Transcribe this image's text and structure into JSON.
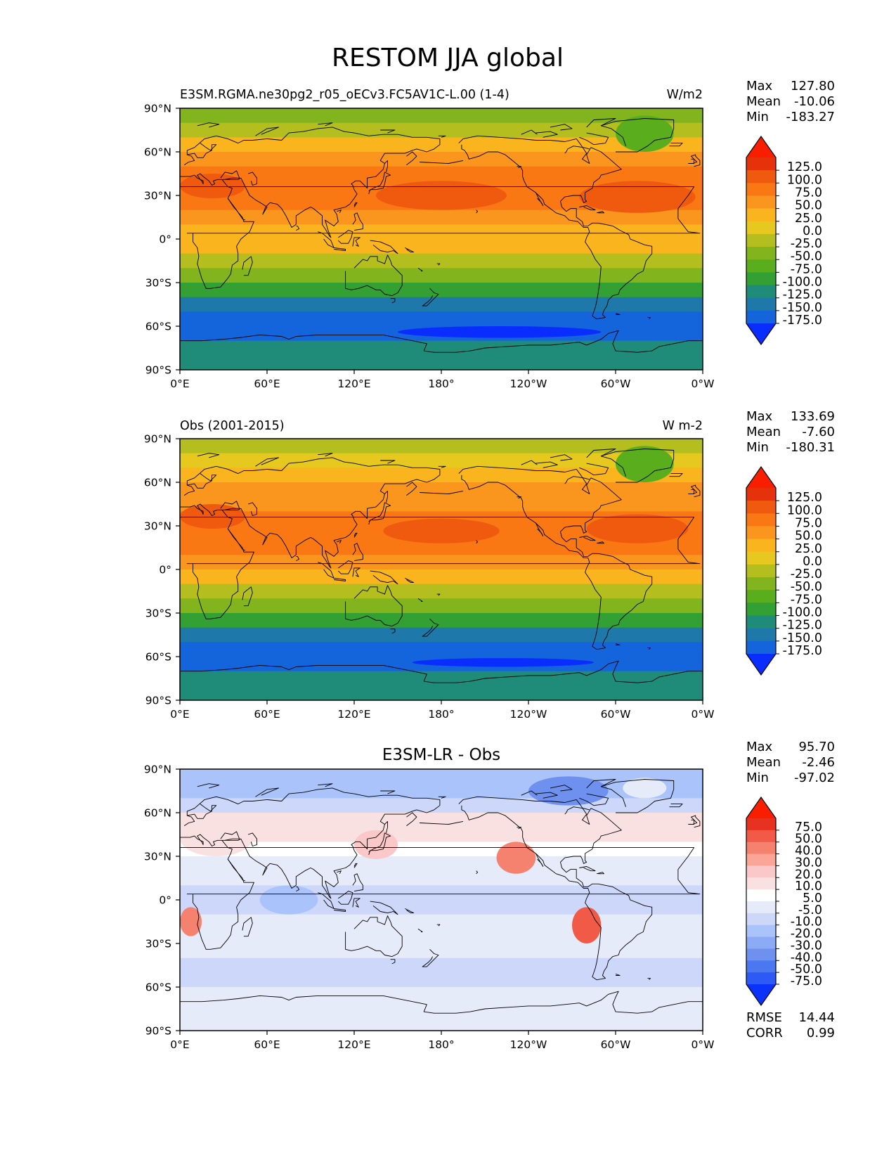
{
  "figure": {
    "title": "RESTOM JJA global"
  },
  "colors": {
    "abs": [
      "#0a2dff",
      "#1464dc",
      "#1e78aa",
      "#1e8c78",
      "#32a032",
      "#5aae1e",
      "#82b41e",
      "#b4be1e",
      "#e6c81e",
      "#fab41e",
      "#fa961e",
      "#fa7814",
      "#f05a0f",
      "#e6320a",
      "#fa1e00"
    ],
    "diff": [
      "#0a32fa",
      "#2d5af5",
      "#4b78f0",
      "#6e91f0",
      "#8caaf5",
      "#aac3fa",
      "#cdd7fa",
      "#e6ebfa",
      "#ffffff",
      "#fae1e1",
      "#fac8c8",
      "#faa596",
      "#f5826e",
      "#f05a46",
      "#e6321e",
      "#fa1e00"
    ],
    "land_outline": "#000000"
  },
  "chart_data": [
    {
      "type": "heatmap",
      "map_type": "filled-contour global map",
      "title": "E3SM.RGMA.ne30pg2_r05_oECv3.FC5AV1C-L.00 (1-4)",
      "units": "W/m2",
      "xticks": [
        "0°E",
        "60°E",
        "120°E",
        "180°",
        "120°W",
        "60°W",
        "0°W"
      ],
      "yticks": [
        "90°N",
        "60°N",
        "30°N",
        "0°",
        "30°S",
        "60°S",
        "90°S"
      ],
      "stats": [
        {
          "label": "Max",
          "value": "127.80"
        },
        {
          "label": "Mean",
          "value": "-10.06"
        },
        {
          "label": "Min",
          "value": "-183.27"
        }
      ],
      "colorbar": {
        "palette": "abs",
        "levels": [
          "125.0",
          "100.0",
          "75.0",
          "50.0",
          "25.0",
          "0.0",
          "-25.0",
          "-50.0",
          "-75.0",
          "-100.0",
          "-125.0",
          "-150.0",
          "-175.0"
        ]
      },
      "zonal_bands": [
        {
          "lat": 85,
          "value": -50
        },
        {
          "lat": 75,
          "value": -25
        },
        {
          "lat": 65,
          "value": 25
        },
        {
          "lat": 55,
          "value": 50
        },
        {
          "lat": 45,
          "value": 75
        },
        {
          "lat": 35,
          "value": 75
        },
        {
          "lat": 25,
          "value": 75
        },
        {
          "lat": 15,
          "value": 60
        },
        {
          "lat": 5,
          "value": 25
        },
        {
          "lat": -5,
          "value": 25
        },
        {
          "lat": -15,
          "value": -10
        },
        {
          "lat": -25,
          "value": -50
        },
        {
          "lat": -35,
          "value": -100
        },
        {
          "lat": -45,
          "value": -135
        },
        {
          "lat": -55,
          "value": -160
        },
        {
          "lat": -65,
          "value": -160
        },
        {
          "lat": -75,
          "value": -110
        },
        {
          "lat": -85,
          "value": -110
        }
      ],
      "features": [
        {
          "region": "North Pacific subtropical high",
          "lon": [
            135,
            225
          ],
          "lat": [
            20,
            40
          ],
          "value": 110
        },
        {
          "region": "North Atlantic subtropical high",
          "lon": [
            275,
            355
          ],
          "lat": [
            18,
            40
          ],
          "value": 110
        },
        {
          "region": "Mediterranean",
          "lon": [
            0,
            45
          ],
          "lat": [
            28,
            45
          ],
          "value": 110
        },
        {
          "region": "Greenland",
          "lon": [
            300,
            340
          ],
          "lat": [
            60,
            85
          ],
          "value": -75
        },
        {
          "region": "Southern Ocean minimum",
          "lon": [
            150,
            290
          ],
          "lat": [
            -68,
            -60
          ],
          "value": -183
        }
      ]
    },
    {
      "type": "heatmap",
      "map_type": "filled-contour global map",
      "title": "Obs (2001-2015)",
      "units": "W m-2",
      "xticks": [
        "0°E",
        "60°E",
        "120°E",
        "180°",
        "120°W",
        "60°W",
        "0°W"
      ],
      "yticks": [
        "90°N",
        "60°N",
        "30°N",
        "0°",
        "30°S",
        "60°S",
        "90°S"
      ],
      "stats": [
        {
          "label": "Max",
          "value": "133.69"
        },
        {
          "label": "Mean",
          "value": "-7.60"
        },
        {
          "label": "Min",
          "value": "-180.31"
        }
      ],
      "colorbar": {
        "palette": "abs",
        "levels": [
          "125.0",
          "100.0",
          "75.0",
          "50.0",
          "25.0",
          "0.0",
          "-25.0",
          "-50.0",
          "-75.0",
          "-100.0",
          "-125.0",
          "-150.0",
          "-175.0"
        ]
      },
      "zonal_bands": [
        {
          "lat": 85,
          "value": -25
        },
        {
          "lat": 75,
          "value": 0
        },
        {
          "lat": 65,
          "value": 25
        },
        {
          "lat": 55,
          "value": 50
        },
        {
          "lat": 45,
          "value": 60
        },
        {
          "lat": 35,
          "value": 75
        },
        {
          "lat": 25,
          "value": 75
        },
        {
          "lat": 15,
          "value": 75
        },
        {
          "lat": 5,
          "value": 50
        },
        {
          "lat": -5,
          "value": 25
        },
        {
          "lat": -15,
          "value": -10
        },
        {
          "lat": -25,
          "value": -50
        },
        {
          "lat": -35,
          "value": -100
        },
        {
          "lat": -45,
          "value": -135
        },
        {
          "lat": -55,
          "value": -160
        },
        {
          "lat": -65,
          "value": -160
        },
        {
          "lat": -75,
          "value": -110
        },
        {
          "lat": -85,
          "value": -110
        }
      ],
      "features": [
        {
          "region": "North Pacific subtropical high",
          "lon": [
            140,
            220
          ],
          "lat": [
            18,
            35
          ],
          "value": 110
        },
        {
          "region": "North Atlantic subtropical high",
          "lon": [
            280,
            350
          ],
          "lat": [
            18,
            38
          ],
          "value": 110
        },
        {
          "region": "Mediterranean",
          "lon": [
            0,
            45
          ],
          "lat": [
            28,
            45
          ],
          "value": 110
        },
        {
          "region": "Greenland",
          "lon": [
            300,
            340
          ],
          "lat": [
            60,
            85
          ],
          "value": -60
        },
        {
          "region": "Southern Ocean minimum",
          "lon": [
            160,
            285
          ],
          "lat": [
            -67,
            -61
          ],
          "value": -180
        }
      ]
    },
    {
      "type": "heatmap",
      "map_type": "filled-contour global map",
      "title": "E3SM-LR - Obs",
      "units": "",
      "xticks": [
        "0°E",
        "60°E",
        "120°E",
        "180°",
        "120°W",
        "60°W",
        "0°W"
      ],
      "yticks": [
        "90°N",
        "60°N",
        "30°N",
        "0°",
        "30°S",
        "60°S",
        "90°S"
      ],
      "stats": [
        {
          "label": "Max",
          "value": "95.70"
        },
        {
          "label": "Mean",
          "value": "-2.46"
        },
        {
          "label": "Min",
          "value": "-97.02"
        }
      ],
      "extra_stats": [
        {
          "label": "RMSE",
          "value": "14.44"
        },
        {
          "label": "CORR",
          "value": "0.99"
        }
      ],
      "colorbar": {
        "palette": "diff",
        "levels": [
          "75.0",
          "50.0",
          "40.0",
          "30.0",
          "20.0",
          "10.0",
          "5.0",
          "-5.0",
          "-10.0",
          "-20.0",
          "-30.0",
          "-40.0",
          "-50.0",
          "-75.0"
        ]
      },
      "zonal_bands": [
        {
          "lat": 85,
          "value": -20
        },
        {
          "lat": 75,
          "value": -20
        },
        {
          "lat": 65,
          "value": -10
        },
        {
          "lat": 55,
          "value": 10
        },
        {
          "lat": 45,
          "value": 10
        },
        {
          "lat": 35,
          "value": 5
        },
        {
          "lat": 25,
          "value": 0
        },
        {
          "lat": 15,
          "value": 0
        },
        {
          "lat": 5,
          "value": -10
        },
        {
          "lat": -5,
          "value": -10
        },
        {
          "lat": -15,
          "value": -5
        },
        {
          "lat": -25,
          "value": 0
        },
        {
          "lat": -35,
          "value": 0
        },
        {
          "lat": -45,
          "value": -10
        },
        {
          "lat": -55,
          "value": -10
        },
        {
          "lat": -65,
          "value": 0
        },
        {
          "lat": -75,
          "value": 0
        },
        {
          "lat": -85,
          "value": 0
        }
      ],
      "features": [
        {
          "region": "Greenland",
          "lon": [
            305,
            335
          ],
          "lat": [
            70,
            84
          ],
          "value": 0
        },
        {
          "region": "Canadian Arctic",
          "lon": [
            240,
            295
          ],
          "lat": [
            65,
            85
          ],
          "value": -40
        },
        {
          "region": "NE Pacific stratocumulus",
          "lon": [
            218,
            245
          ],
          "lat": [
            18,
            40
          ],
          "value": 40
        },
        {
          "region": "SE Pacific stratocumulus",
          "lon": [
            270,
            290
          ],
          "lat": [
            -30,
            -5
          ],
          "value": 50
        },
        {
          "region": "SE Atlantic stratocumulus",
          "lon": [
            0,
            15
          ],
          "lat": [
            -25,
            -5
          ],
          "value": 40
        },
        {
          "region": "Mediterranean / Europe",
          "lon": [
            0,
            50
          ],
          "lat": [
            30,
            55
          ],
          "value": 10
        },
        {
          "region": "Kuroshio / Japan",
          "lon": [
            120,
            150
          ],
          "lat": [
            28,
            48
          ],
          "value": 20
        },
        {
          "region": "Tropical Indian Ocean",
          "lon": [
            55,
            95
          ],
          "lat": [
            -10,
            10
          ],
          "value": -15
        },
        {
          "region": "Warm pool",
          "lon": [
            110,
            160
          ],
          "lat": [
            -5,
            10
          ],
          "value": -10
        }
      ]
    }
  ]
}
